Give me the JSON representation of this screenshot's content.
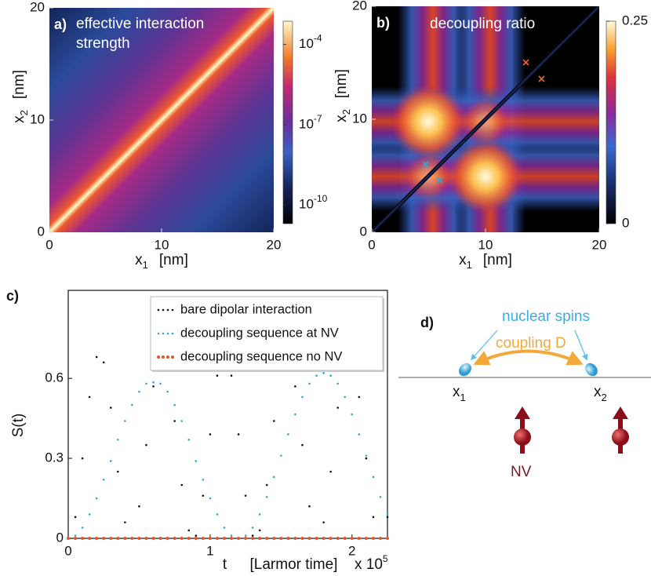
{
  "chart_data": [
    {
      "type": "heatmap",
      "panel_label": "a)",
      "title": "effective interaction strength",
      "x_label": "x",
      "x_label_sub": "1",
      "x_unit": "[nm]",
      "y_label": "x",
      "y_label_sub": "2",
      "y_unit": "[nm]",
      "xlim": [
        0,
        20
      ],
      "xticks": [
        0,
        10,
        20
      ],
      "ylim": [
        0,
        20
      ],
      "yticks": [
        0,
        10,
        20
      ],
      "color_scale": "log",
      "clim": [
        2e-11,
        0.00074
      ],
      "cticks": [
        {
          "value": 0.0001,
          "label": "10^-4"
        },
        {
          "value": 1e-07,
          "label": "10^-7"
        },
        {
          "value": 1e-10,
          "label": "10^-10"
        }
      ]
    },
    {
      "type": "heatmap",
      "panel_label": "b)",
      "title": "decoupling ratio",
      "x_label": "x",
      "x_label_sub": "1",
      "x_unit": "[nm]",
      "y_label": "x",
      "y_label_sub": "2",
      "y_unit": "[nm]",
      "xlim": [
        0,
        20
      ],
      "xticks": [
        0,
        10,
        20
      ],
      "ylim": [
        0,
        20
      ],
      "yticks": [
        0,
        10,
        20
      ],
      "color_scale": "linear",
      "clim": [
        0,
        0.25
      ],
      "cticks": [
        0,
        0.25
      ]
    },
    {
      "type": "line",
      "panel_label": "c)",
      "x_label": "t",
      "x_unit": "[Larmor time]",
      "x_multiplier": "x 10^5",
      "y_label": "S(t)",
      "xlim": [
        0,
        2.25
      ],
      "xticks": [
        0,
        1,
        2
      ],
      "ylim": [
        0,
        0.93
      ],
      "yticks": [
        0,
        0.3,
        0.6
      ],
      "legend": "upper right",
      "marker": "dot",
      "x": [
        0,
        0.05,
        0.1,
        0.15,
        0.2,
        0.25,
        0.3,
        0.35,
        0.4,
        0.45,
        0.5,
        0.55,
        0.6,
        0.65,
        0.7,
        0.75,
        0.8,
        0.85,
        0.9,
        0.95,
        1,
        1.05,
        1.1,
        1.15,
        1.2,
        1.25,
        1.3,
        1.35,
        1.4,
        1.45,
        1.5,
        1.55,
        1.6,
        1.65,
        1.7,
        1.75,
        1.8,
        1.85,
        1.9,
        1.95,
        2,
        2.05,
        2.1,
        2.15,
        2.2,
        2.25
      ],
      "series": [
        {
          "name": "bare dipolar interaction",
          "color": "#111111",
          "values": [
            0,
            0.08,
            0.3,
            0.53,
            0.68,
            0.66,
            0.49,
            0.25,
            0.06,
            0,
            0.12,
            0.35,
            0.57,
            0.69,
            0.63,
            0.44,
            0.2,
            0.03,
            0.01,
            0.16,
            0.39,
            0.61,
            0.69,
            0.61,
            0.39,
            0.16,
            0.01,
            0.03,
            0.2,
            0.44,
            0.63,
            0.69,
            0.57,
            0.35,
            0.12,
            0,
            0.06,
            0.25,
            0.49,
            0.66,
            0.68,
            0.53,
            0.3,
            0.08,
            0,
            0.08
          ]
        },
        {
          "name": "decoupling sequence at NV",
          "color": "#2ea8d8",
          "values": [
            0,
            0.01,
            0.04,
            0.09,
            0.15,
            0.22,
            0.29,
            0.37,
            0.44,
            0.5,
            0.55,
            0.58,
            0.585,
            0.58,
            0.55,
            0.5,
            0.44,
            0.37,
            0.29,
            0.22,
            0.15,
            0.09,
            0.04,
            0.01,
            0,
            0.01,
            0.04,
            0.09,
            0.155,
            0.23,
            0.31,
            0.39,
            0.465,
            0.53,
            0.58,
            0.61,
            0.62,
            0.61,
            0.58,
            0.53,
            0.465,
            0.39,
            0.31,
            0.23,
            0.155,
            0.09
          ]
        },
        {
          "name": "decoupling sequence no NV",
          "color": "#e8532a",
          "values": [
            0,
            0,
            0,
            0,
            0,
            0,
            0,
            0,
            0,
            0,
            0,
            0,
            0,
            0,
            0,
            0,
            0,
            0,
            0,
            0,
            0,
            0,
            0,
            0,
            0,
            0,
            0,
            0,
            0,
            0,
            0,
            0,
            0,
            0,
            0,
            0,
            0,
            0,
            0,
            0,
            0,
            0,
            0,
            0,
            0,
            0
          ]
        }
      ]
    }
  ],
  "diagram": {
    "panel_label": "d)",
    "spins_label": "nuclear spins",
    "coupling_label": "coupling D",
    "x1": "x",
    "x1_sub": "1",
    "x2": "x",
    "x2_sub": "2",
    "nv_label": "NV"
  }
}
